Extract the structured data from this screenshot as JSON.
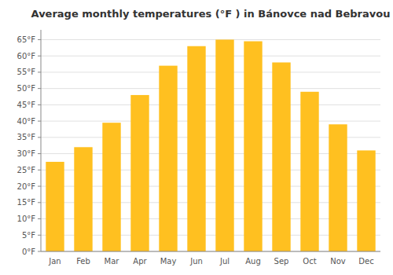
{
  "chart_data": {
    "type": "bar",
    "title": "Average monthly temperatures (°F ) in Bánovce nad Bebravou",
    "categories": [
      "Jan",
      "Feb",
      "Mar",
      "Apr",
      "May",
      "Jun",
      "Jul",
      "Aug",
      "Sep",
      "Oct",
      "Nov",
      "Dec"
    ],
    "values": [
      27.5,
      32.0,
      39.5,
      48.0,
      57.0,
      63.0,
      65.0,
      64.5,
      58.0,
      49.0,
      39.0,
      31.0
    ],
    "color": "#FFC020",
    "ylim": [
      0,
      68
    ],
    "yticks": [
      {
        "value": 0,
        "label": "0°F"
      },
      {
        "value": 5,
        "label": "5°F"
      },
      {
        "value": 10,
        "label": "10°F"
      },
      {
        "value": 15,
        "label": "15°F"
      },
      {
        "value": 20,
        "label": "20°F"
      },
      {
        "value": 25,
        "label": "25°F"
      },
      {
        "value": 30,
        "label": "30°F"
      },
      {
        "value": 35,
        "label": "35°F"
      },
      {
        "value": 40,
        "label": "40°F"
      },
      {
        "value": 45,
        "label": "45°F"
      },
      {
        "value": 50,
        "label": "50°F"
      },
      {
        "value": 55,
        "label": "55°F"
      },
      {
        "value": 60,
        "label": "60°F"
      },
      {
        "value": 65,
        "label": "65°F"
      }
    ],
    "grid": true
  }
}
